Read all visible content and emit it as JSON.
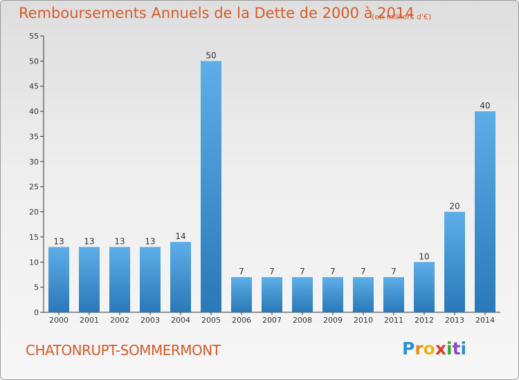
{
  "chart_data": {
    "type": "bar",
    "title": "Remboursements Annuels de la Dette de 2000 à 2014",
    "unit_note": "(en milliers d'€)",
    "categories": [
      "2000",
      "2001",
      "2002",
      "2003",
      "2004",
      "2005",
      "2006",
      "2007",
      "2008",
      "2009",
      "2010",
      "2011",
      "2012",
      "2013",
      "2014"
    ],
    "values": [
      13,
      13,
      13,
      13,
      14,
      50,
      7,
      7,
      7,
      7,
      7,
      7,
      10,
      20,
      40
    ],
    "value_labels": [
      "13",
      "13",
      "13",
      "13",
      "14",
      "50",
      "7",
      "7",
      "7",
      "7",
      "7",
      "7",
      "10",
      "20",
      "40"
    ],
    "xlabel": "",
    "ylabel": "",
    "ylim": [
      0,
      55
    ],
    "yticks": [
      0,
      5,
      10,
      15,
      20,
      25,
      30,
      35,
      40,
      45,
      50,
      55
    ],
    "ytick_labels": [
      "0",
      "5",
      "10",
      "15",
      "20",
      "25",
      "30",
      "35",
      "40",
      "45",
      "50",
      "55"
    ],
    "grid": false,
    "legend": "none",
    "bar_color_top": "#5daee8",
    "bar_color_bottom": "#2a78b8",
    "axis_color": "#333333"
  },
  "footer": {
    "city": "CHATONRUPT-SOMMERMONT",
    "logo": [
      "P",
      "r",
      "o",
      "x",
      "i",
      "t",
      "i"
    ]
  },
  "colors": {
    "title": "#d65a2a"
  }
}
